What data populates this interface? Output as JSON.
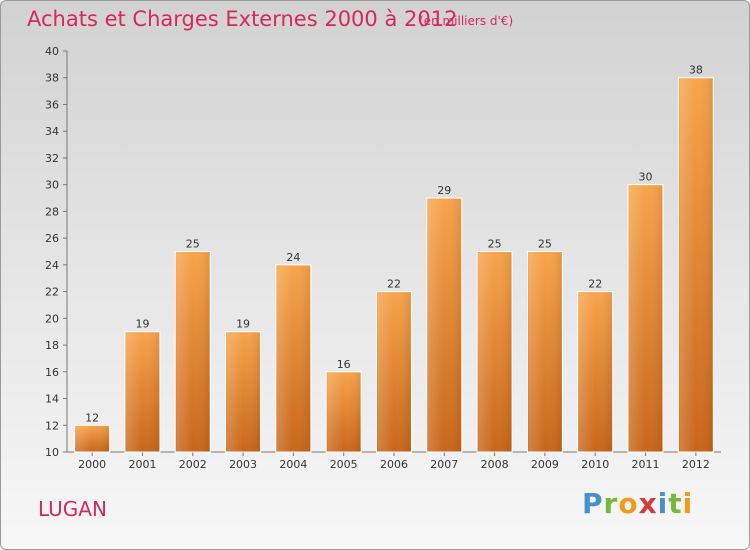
{
  "header": {
    "title": "Achats et Charges Externes 2000 à 2012",
    "subtitle": "(en milliers d'€)"
  },
  "footer": {
    "commune": "LUGAN",
    "logo_letters": [
      "P",
      "r",
      "o",
      "x",
      "i",
      "t",
      "i"
    ],
    "logo_colors": [
      "#4a90c8",
      "#78b83a",
      "#f39a1e",
      "#d43b3b",
      "#4a90c8",
      "#78b83a",
      "#f39a1e"
    ]
  },
  "colors": {
    "bar_light": "#f7a44c",
    "bar_dark": "#c8661a",
    "accent": "#d5285f"
  },
  "chart_data": {
    "type": "bar",
    "title": "Achats et Charges Externes 2000 à 2012",
    "subtitle": "(en milliers d'€)",
    "categories": [
      "2000",
      "2001",
      "2002",
      "2003",
      "2004",
      "2005",
      "2006",
      "2007",
      "2008",
      "2009",
      "2010",
      "2011",
      "2012"
    ],
    "values": [
      12,
      19,
      25,
      19,
      24,
      16,
      22,
      29,
      25,
      25,
      22,
      30,
      38
    ],
    "ylim": [
      10,
      40
    ],
    "yticks": [
      10,
      12,
      14,
      16,
      18,
      20,
      22,
      24,
      26,
      28,
      30,
      32,
      34,
      36,
      38,
      40
    ],
    "grid": false
  }
}
